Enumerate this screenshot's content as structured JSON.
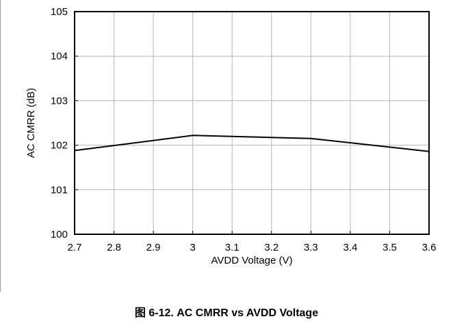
{
  "caption": "图 6-12. AC CMRR vs AVDD Voltage",
  "chart_data": {
    "type": "line",
    "title": "",
    "xlabel": "AVDD Voltage (V)",
    "ylabel": "AC CMRR (dB)",
    "xlim": [
      2.7,
      3.6
    ],
    "ylim": [
      100,
      105
    ],
    "xticks": [
      2.7,
      2.8,
      2.9,
      3,
      3.1,
      3.2,
      3.3,
      3.4,
      3.5,
      3.6
    ],
    "xtick_labels": [
      "2.7",
      "2.8",
      "2.9",
      "3",
      "3.1",
      "3.2",
      "3.3",
      "3.4",
      "3.5",
      "3.6"
    ],
    "yticks": [
      100,
      101,
      102,
      103,
      104,
      105
    ],
    "ytick_labels": [
      "100",
      "101",
      "102",
      "103",
      "104",
      "105"
    ],
    "grid": true,
    "legend": "none",
    "series": [
      {
        "x": [
          2.7,
          3.0,
          3.3,
          3.6
        ],
        "y": [
          101.88,
          102.22,
          102.15,
          101.86
        ],
        "color": "#000000"
      }
    ]
  }
}
